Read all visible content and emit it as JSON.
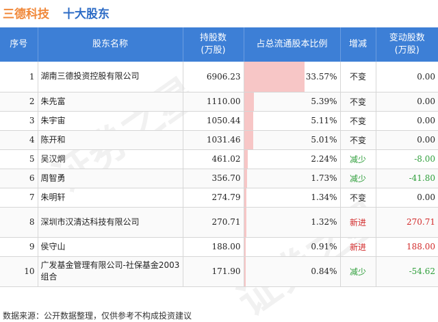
{
  "title": {
    "company": "三德科技",
    "subtitle": "十大股东"
  },
  "headers": {
    "no": "序号",
    "name": "股东名称",
    "holding_line1": "持股数",
    "holding_line2": "(万股)",
    "pct": "占总流通股本比例",
    "change": "增减",
    "delta_line1": "变动股数",
    "delta_line2": "(万股)"
  },
  "rows": [
    {
      "no": "1",
      "name": "湖南三德投资控股有限公司",
      "holding": "6906.23",
      "pct": "33.57%",
      "pct_value": 33.57,
      "change": "不变",
      "status": "same",
      "delta": "0.00"
    },
    {
      "no": "2",
      "name": "朱先富",
      "holding": "1110.00",
      "pct": "5.39%",
      "pct_value": 5.39,
      "change": "不变",
      "status": "same",
      "delta": "0.00"
    },
    {
      "no": "3",
      "name": "朱宇宙",
      "holding": "1050.44",
      "pct": "5.11%",
      "pct_value": 5.11,
      "change": "不变",
      "status": "same",
      "delta": "0.00"
    },
    {
      "no": "4",
      "name": "陈开和",
      "holding": "1031.46",
      "pct": "5.01%",
      "pct_value": 5.01,
      "change": "不变",
      "status": "same",
      "delta": "0.00"
    },
    {
      "no": "5",
      "name": "吴汉炯",
      "holding": "461.02",
      "pct": "2.24%",
      "pct_value": 2.24,
      "change": "减少",
      "status": "down",
      "delta": "-8.00"
    },
    {
      "no": "6",
      "name": "周智勇",
      "holding": "356.70",
      "pct": "1.73%",
      "pct_value": 1.73,
      "change": "减少",
      "status": "down",
      "delta": "-41.80"
    },
    {
      "no": "7",
      "name": "朱明轩",
      "holding": "274.79",
      "pct": "1.34%",
      "pct_value": 1.34,
      "change": "不变",
      "status": "same",
      "delta": "0.00"
    },
    {
      "no": "8",
      "name": "深圳市汉清达科技有限公司",
      "holding": "270.71",
      "pct": "1.32%",
      "pct_value": 1.32,
      "change": "新进",
      "status": "new",
      "delta": "270.71"
    },
    {
      "no": "9",
      "name": "侯守山",
      "holding": "188.00",
      "pct": "0.91%",
      "pct_value": 0.91,
      "change": "新进",
      "status": "new",
      "delta": "188.00"
    },
    {
      "no": "10",
      "name": "广发基金管理有限公司-社保基金2003组合",
      "holding": "171.90",
      "pct": "0.84%",
      "pct_value": 0.84,
      "change": "减少",
      "status": "down",
      "delta": "-54.62"
    }
  ],
  "source": "数据来源：公开数据整理，仅供参考不构成投资建议",
  "watermark": "证券之星",
  "colors": {
    "header_bg": "#3d7fd6",
    "title_orange": "#f0883a",
    "title_blue": "#2d6cc6",
    "bar": "#f7c6c6",
    "down": "#2e9e3a",
    "new": "#d22a2a"
  }
}
